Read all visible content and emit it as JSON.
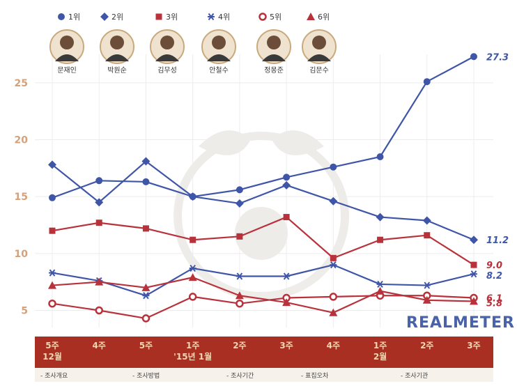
{
  "chart_data": {
    "type": "line",
    "categories": [
      "5주\n12월",
      "4주",
      "5주",
      "1주\n'15년 1월",
      "2주",
      "3주",
      "4주",
      "1주\n2월",
      "2주",
      "3주"
    ],
    "ylim": [
      3.5,
      27.5
    ],
    "yticks": [
      "5",
      "10",
      "15",
      "20",
      "25"
    ],
    "series": [
      {
        "name": "1위",
        "marker": "circle",
        "color": "#3f56a8",
        "values": [
          14.9,
          16.4,
          16.3,
          15.0,
          15.6,
          16.7,
          17.6,
          18.5,
          25.1,
          27.3
        ],
        "end_label": "27.3"
      },
      {
        "name": "2위",
        "marker": "diamond",
        "color": "#3f56a8",
        "values": [
          17.8,
          14.5,
          18.1,
          15.0,
          14.4,
          16.0,
          14.6,
          13.2,
          12.9,
          11.2
        ],
        "end_label": "11.2"
      },
      {
        "name": "3위",
        "marker": "square",
        "color": "#b8323c",
        "values": [
          12.0,
          12.7,
          12.2,
          11.2,
          11.5,
          13.2,
          9.6,
          11.2,
          11.6,
          9.0
        ],
        "end_label": "9.0"
      },
      {
        "name": "4위",
        "marker": "asterisk",
        "color": "#3f56a8",
        "values": [
          8.3,
          7.6,
          6.3,
          8.7,
          8.0,
          8.0,
          9.0,
          7.3,
          7.2,
          8.2
        ],
        "end_label": "8.2"
      },
      {
        "name": "5위",
        "marker": "open-circle",
        "color": "#b8323c",
        "values": [
          5.6,
          5.0,
          4.3,
          6.2,
          5.6,
          6.1,
          6.2,
          6.3,
          6.3,
          6.1
        ],
        "end_label": "6.1"
      },
      {
        "name": "6위",
        "marker": "triangle",
        "color": "#b8323c",
        "values": [
          7.2,
          7.5,
          7.0,
          7.9,
          6.3,
          5.7,
          4.8,
          6.7,
          5.9,
          5.8
        ],
        "end_label": "5.8"
      }
    ],
    "candidates": [
      "문재인",
      "박원순",
      "김무성",
      "안철수",
      "정몽준",
      "김문수"
    ],
    "grid": true,
    "legend": "top"
  },
  "brand": "REALMETER",
  "footer": [
    "조사개요",
    "조사방법",
    "조사기간",
    "표집오차",
    "조사기관"
  ]
}
